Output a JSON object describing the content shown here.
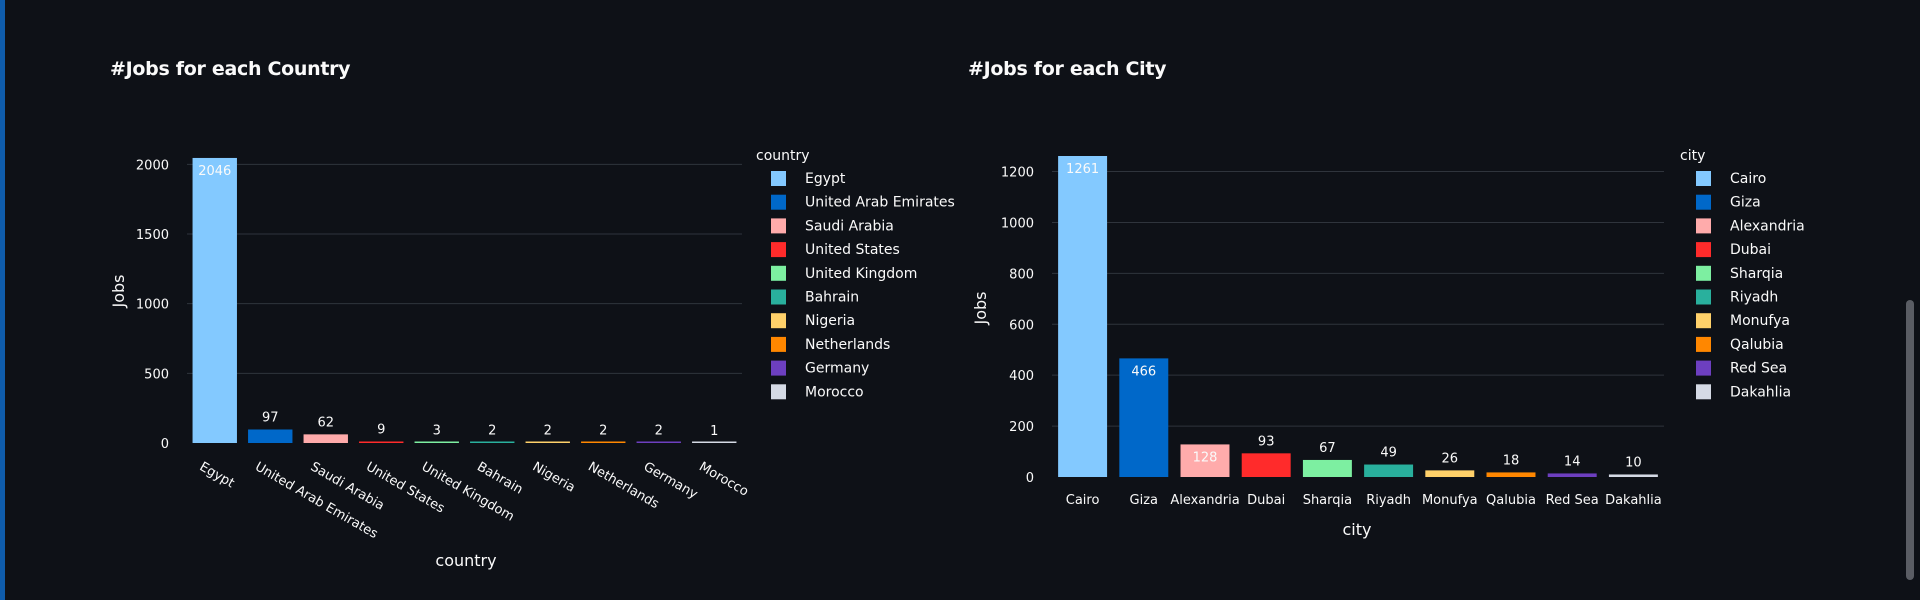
{
  "colors": {
    "background": "#0e1117",
    "gridline": "#2f343c",
    "text": "#fafafa",
    "palette": [
      "#83c9ff",
      "#0068c9",
      "#ffabab",
      "#ff2b2b",
      "#7defa1",
      "#29b09d",
      "#ffd16a",
      "#ff8700",
      "#6d3fc0",
      "#d5dae5"
    ]
  },
  "chart_data": [
    {
      "type": "bar",
      "title": "#Jobs for each Country",
      "xlabel": "country",
      "ylabel": "Jobs",
      "legend_title": "country",
      "legend_placement": "right",
      "grid": true,
      "ylim": [
        0,
        2060
      ],
      "yticks": [
        0,
        500,
        1000,
        1500,
        2000
      ],
      "categories": [
        "Egypt",
        "United Arab Emirates",
        "Saudi Arabia",
        "United States",
        "United Kingdom",
        "Bahrain",
        "Nigeria",
        "Netherlands",
        "Germany",
        "Morocco"
      ],
      "values": [
        2046,
        97,
        62,
        9,
        3,
        2,
        2,
        2,
        2,
        1
      ],
      "data_labels": [
        "2046",
        "97",
        "62",
        "9",
        "3",
        "2",
        "2",
        "2",
        "2",
        "1"
      ]
    },
    {
      "type": "bar",
      "title": "#Jobs for each City",
      "xlabel": "city",
      "ylabel": "Jobs",
      "legend_title": "city",
      "legend_placement": "right",
      "grid": true,
      "ylim": [
        0,
        1261
      ],
      "yticks": [
        0,
        200,
        400,
        600,
        800,
        1000,
        1200
      ],
      "categories": [
        "Cairo",
        "Giza",
        "Alexandria",
        "Dubai",
        "Sharqia",
        "Riyadh",
        "Monufya",
        "Qalubia",
        "Red Sea",
        "Dakahlia"
      ],
      "values": [
        1261,
        466,
        128,
        93,
        67,
        49,
        26,
        18,
        14,
        10
      ],
      "data_labels": [
        "1261",
        "466",
        "128",
        "93",
        "67",
        "49",
        "26",
        "18",
        "14",
        "10"
      ]
    }
  ]
}
